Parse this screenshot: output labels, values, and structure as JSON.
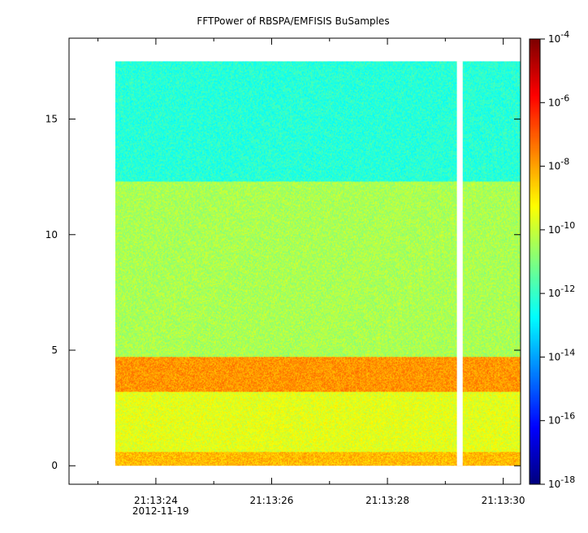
{
  "chart_data": {
    "type": "heatmap",
    "title": "FFTPower of RBSPA/EMFISIS  BuSamples",
    "xlabel": "",
    "ylabel": "",
    "x": {
      "start": "21:13:22.5",
      "end": "21:13:30.3",
      "data_start": "21:13:23.3",
      "data_end": "21:13:30.3",
      "gap": [
        "21:13:29.2",
        "21:13:29.3"
      ],
      "ticks": [
        {
          "label": "21:13:24",
          "sub": "2012-11-19",
          "t": 24
        },
        {
          "label": "21:13:26",
          "sub": "",
          "t": 26
        },
        {
          "label": "21:13:28",
          "sub": "",
          "t": 28
        },
        {
          "label": "21:13:30",
          "sub": "",
          "t": 30
        }
      ],
      "minor_ticks": [
        23,
        25,
        27,
        29
      ]
    },
    "y": {
      "range": [
        -0.8,
        18.5
      ],
      "data_range": [
        0,
        17.5
      ],
      "ticks": [
        0,
        5,
        10,
        15
      ],
      "labels": [
        "0",
        "5",
        "10",
        "15"
      ]
    },
    "colorbar": {
      "scale": "log",
      "range": [
        1e-18,
        0.0001
      ],
      "labels": [
        {
          "base": "10",
          "exp": "-4"
        },
        {
          "base": "10",
          "exp": "-6"
        },
        {
          "base": "10",
          "exp": "-8"
        },
        {
          "base": "10",
          "exp": "-10"
        },
        {
          "base": "10",
          "exp": "-12"
        },
        {
          "base": "10",
          "exp": "-14"
        },
        {
          "base": "10",
          "exp": "-16"
        },
        {
          "base": "10",
          "exp": "-18"
        }
      ]
    },
    "bands": [
      {
        "y_from": 12.3,
        "y_to": 17.5,
        "log_power": -12.2
      },
      {
        "y_from": 4.7,
        "y_to": 12.3,
        "log_power": -10.4
      },
      {
        "y_from": 3.2,
        "y_to": 4.7,
        "log_power": -7.8
      },
      {
        "y_from": 0.6,
        "y_to": 3.2,
        "log_power": -9.6
      },
      {
        "y_from": 0.0,
        "y_to": 0.6,
        "log_power": -8.3
      }
    ]
  }
}
